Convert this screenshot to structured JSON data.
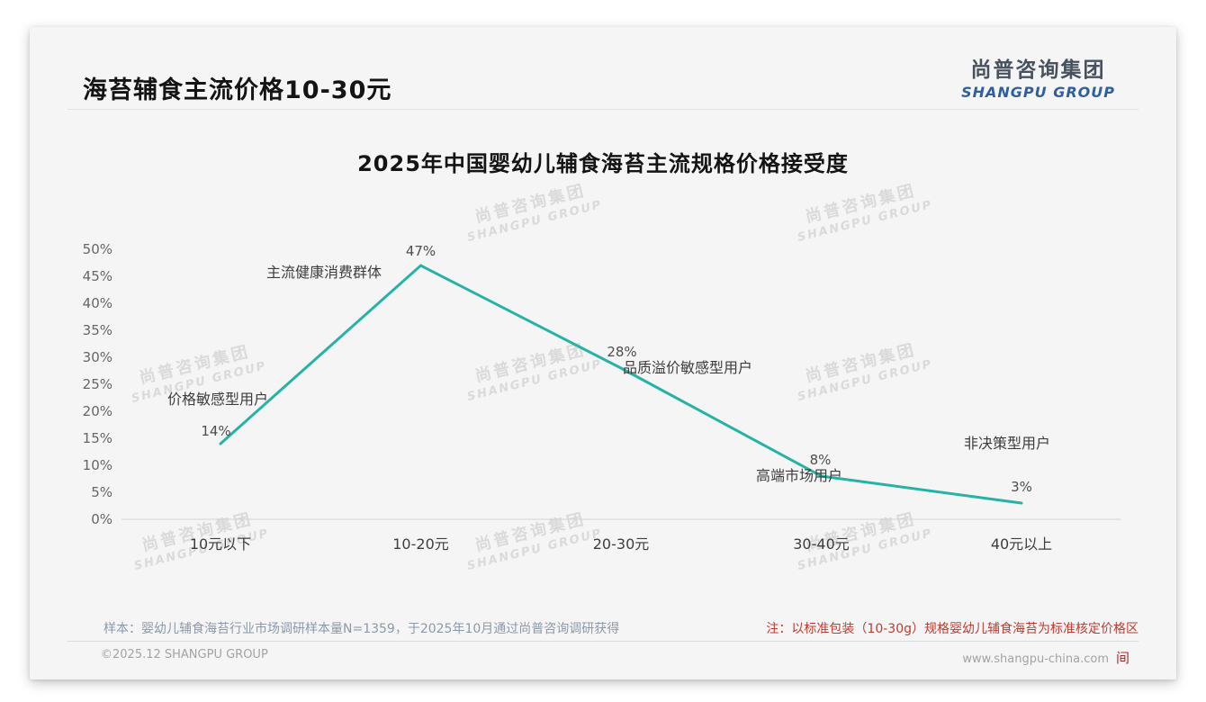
{
  "header": {
    "title": "海苔辅食主流价格10-30元",
    "logo": {
      "cn": "尚普咨询集团",
      "en": "SHANGPU GROUP"
    }
  },
  "watermark": {
    "line1": "尚普咨询集团",
    "line2": "SHANGPU GROUP"
  },
  "chart_data": {
    "type": "line",
    "title": "2025年中国婴幼儿辅食海苔主流规格价格接受度",
    "categories": [
      "10元以下",
      "10-20元",
      "20-30元",
      "30-40元",
      "40元以上"
    ],
    "values": [
      14,
      47,
      28,
      8,
      3
    ],
    "value_labels": [
      "14%",
      "47%",
      "28%",
      "8%",
      "3%"
    ],
    "point_annotations": [
      "价格敏感型用户",
      "主流健康消费群体",
      "品质溢价敏感型用户",
      "高端市场用户",
      "非决策型用户"
    ],
    "xlabel": "",
    "ylabel": "",
    "ylim": [
      0,
      50
    ],
    "ytick_step": 5,
    "yticks": [
      "0%",
      "5%",
      "10%",
      "15%",
      "20%",
      "25%",
      "30%",
      "35%",
      "40%",
      "45%",
      "50%"
    ],
    "grid": false,
    "legend": "none",
    "line_color": "#26b3a6"
  },
  "footnotes": {
    "sample": "样本：婴幼儿辅食海苔行业市场调研样本量N=1359，于2025年10月通过尚普咨询调研获得",
    "note": "注：以标准包装（10-30g）规格婴幼儿辅食海苔为标准核定价格区"
  },
  "footer": {
    "copyright": "©2025.12 SHANGPU GROUP",
    "website": "www.shangpu-china.com",
    "seal": "间"
  }
}
